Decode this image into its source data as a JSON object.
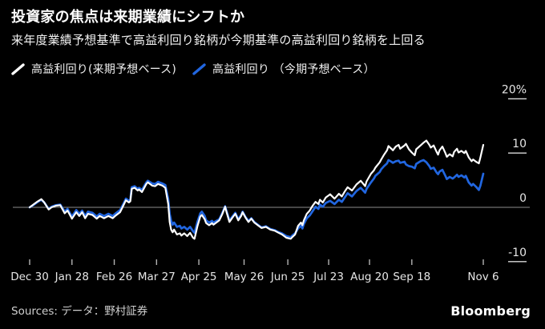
{
  "header": {
    "title": "投資家の焦点は来期業績にシフトか",
    "subtitle": "来年度業績予想基準で高益利回り銘柄が今期基準の高益利回り銘柄を上回る"
  },
  "legend": [
    {
      "label": "高益利回り(来期予想ベース)",
      "color": "#ffffff"
    },
    {
      "label": "高益利回り （今期予想ベース）",
      "color": "#2166e0"
    }
  ],
  "footer": {
    "sources_label": "Sources:",
    "sources_text": "データ：野村証券",
    "brand": "Bloomberg"
  },
  "theme": {
    "background": "#000000",
    "zero_line": "#8c8c8c",
    "y_tick": "#d9d9d9",
    "x_tick": "#b3b3b3",
    "axis_text": "#e6e6e6"
  },
  "chart_data": {
    "type": "line",
    "title": "投資家の焦点は来期業績にシフトか",
    "x_unit": "days since Dec 30",
    "xlim": [
      0,
      311
    ],
    "ylim": [
      -11,
      22
    ],
    "grid": "zero line only",
    "legend_position": "top",
    "y_ticks": [
      {
        "label": "20%",
        "value": 20
      },
      {
        "label": "10",
        "value": 10
      },
      {
        "label": "0",
        "value": 0
      },
      {
        "label": "-10",
        "value": -10
      }
    ],
    "x_ticks": [
      {
        "label": "Dec 30",
        "day": 0
      },
      {
        "label": "Jan 28",
        "day": 29
      },
      {
        "label": "Feb 26",
        "day": 58
      },
      {
        "label": "Mar 27",
        "day": 87
      },
      {
        "label": "Apr 25",
        "day": 116
      },
      {
        "label": "May 26",
        "day": 147
      },
      {
        "label": "Jun 25",
        "day": 177
      },
      {
        "label": "Jul 23",
        "day": 205
      },
      {
        "label": "Aug 20",
        "day": 233
      },
      {
        "label": "Sep 18",
        "day": 262
      },
      {
        "label": "Nov 6",
        "day": 311
      }
    ],
    "days": [
      0,
      3,
      5,
      8,
      10,
      13,
      15,
      18,
      21,
      24,
      26,
      29,
      32,
      34,
      36,
      38,
      40,
      43,
      46,
      48,
      51,
      54,
      57,
      59,
      62,
      64,
      66,
      68,
      69,
      70,
      72,
      74,
      75,
      77,
      80,
      81,
      84,
      86,
      88,
      91,
      93,
      95,
      96,
      97,
      98,
      99,
      101,
      103,
      104,
      106,
      108,
      110,
      112,
      113,
      115,
      117,
      118,
      120,
      121,
      123,
      125,
      126,
      128,
      130,
      132,
      134,
      135,
      137,
      139,
      141,
      143,
      145,
      146,
      148,
      150,
      152,
      154,
      157,
      159,
      162,
      165,
      168,
      170,
      173,
      176,
      179,
      180,
      182,
      184,
      186,
      187,
      188,
      190,
      192,
      194,
      196,
      198,
      199,
      201,
      203,
      206,
      209,
      212,
      214,
      216,
      218,
      220,
      221,
      224,
      227,
      230,
      231,
      234,
      236,
      237,
      240,
      241,
      243,
      245,
      246,
      248,
      249,
      251,
      253,
      254,
      257,
      258,
      260,
      262,
      264,
      265,
      268,
      270,
      272,
      274,
      275,
      277,
      279,
      280,
      281,
      283,
      285,
      286,
      288,
      290,
      291,
      293,
      294,
      296,
      298,
      299,
      301,
      303,
      304,
      306,
      308,
      309,
      311
    ],
    "series": [
      {
        "name": "高益利回り(来期予想ベース)",
        "color": "#ffffff",
        "width": 2.2,
        "values": [
          0.0,
          0.6,
          1.0,
          1.5,
          0.9,
          -0.4,
          0.0,
          0.3,
          0.4,
          -1.1,
          -0.6,
          -2.1,
          -0.9,
          -1.6,
          -0.9,
          -2.0,
          -1.2,
          -1.4,
          -2.1,
          -1.6,
          -2.0,
          -1.6,
          -2.0,
          -1.5,
          -0.9,
          0.2,
          1.3,
          0.9,
          1.1,
          3.4,
          3.6,
          3.1,
          3.3,
          2.8,
          4.3,
          4.6,
          4.0,
          3.9,
          4.3,
          4.0,
          3.6,
          0.6,
          -2.7,
          -4.1,
          -4.6,
          -4.1,
          -5.0,
          -4.8,
          -5.2,
          -4.8,
          -5.3,
          -4.7,
          -5.6,
          -5.8,
          -3.5,
          -1.7,
          -1.4,
          -2.2,
          -2.9,
          -3.3,
          -2.9,
          -3.2,
          -2.8,
          -2.4,
          -1.3,
          0.1,
          -0.9,
          -2.7,
          -1.9,
          -1.2,
          -2.4,
          -1.6,
          -0.9,
          -1.9,
          -2.7,
          -2.1,
          -2.8,
          -3.4,
          -3.8,
          -3.6,
          -4.1,
          -4.3,
          -4.6,
          -5.0,
          -5.6,
          -5.8,
          -5.5,
          -5.0,
          -3.4,
          -2.8,
          -3.3,
          -2.4,
          -1.2,
          -0.6,
          0.3,
          1.0,
          0.6,
          1.4,
          0.9,
          1.8,
          2.4,
          1.6,
          2.5,
          2.0,
          2.9,
          3.7,
          3.3,
          3.1,
          4.2,
          4.9,
          3.9,
          4.8,
          6.2,
          6.8,
          7.3,
          8.3,
          8.8,
          9.7,
          10.5,
          11.3,
          10.8,
          10.5,
          11.2,
          11.5,
          10.8,
          11.4,
          11.7,
          10.7,
          10.1,
          9.6,
          10.7,
          11.4,
          11.9,
          12.3,
          11.5,
          11.0,
          11.4,
          10.2,
          9.7,
          10.5,
          11.2,
          10.0,
          9.3,
          9.8,
          9.4,
          10.2,
          10.8,
          10.1,
          10.4,
          10.0,
          10.4,
          9.2,
          8.5,
          8.8,
          8.4,
          8.1,
          9.2,
          11.5
        ]
      },
      {
        "name": "高益利回り（今期予想ベース）",
        "color": "#2166e0",
        "width": 2.7,
        "values": [
          0.0,
          0.5,
          0.9,
          1.4,
          0.9,
          -0.3,
          0.1,
          0.4,
          0.5,
          -0.8,
          -0.3,
          -1.7,
          -0.5,
          -1.2,
          -0.6,
          -1.6,
          -0.8,
          -1.0,
          -1.7,
          -1.2,
          -1.6,
          -1.2,
          -1.6,
          -1.1,
          -0.5,
          0.5,
          1.6,
          1.2,
          1.4,
          3.7,
          3.9,
          3.4,
          3.6,
          3.2,
          4.6,
          4.9,
          4.4,
          4.3,
          4.7,
          4.4,
          4.1,
          1.5,
          -1.2,
          -2.5,
          -3.2,
          -2.8,
          -3.6,
          -3.4,
          -3.9,
          -3.6,
          -4.1,
          -3.6,
          -4.4,
          -4.7,
          -2.7,
          -1.1,
          -0.8,
          -1.6,
          -2.4,
          -2.8,
          -2.5,
          -2.8,
          -2.5,
          -2.2,
          -1.1,
          0.2,
          -0.7,
          -2.4,
          -1.7,
          -1.0,
          -2.2,
          -1.4,
          -0.8,
          -1.8,
          -2.5,
          -2.0,
          -2.7,
          -3.3,
          -3.7,
          -3.5,
          -4.0,
          -4.2,
          -4.5,
          -4.8,
          -5.3,
          -5.5,
          -5.2,
          -4.8,
          -3.9,
          -3.4,
          -3.9,
          -3.1,
          -2.0,
          -1.5,
          -0.7,
          0.1,
          -0.3,
          0.5,
          0.1,
          0.8,
          1.2,
          0.6,
          1.4,
          1.0,
          1.8,
          2.6,
          2.2,
          2.0,
          3.0,
          3.6,
          2.7,
          3.4,
          4.6,
          5.3,
          5.8,
          6.5,
          7.0,
          7.6,
          8.1,
          8.7,
          8.4,
          8.2,
          8.5,
          8.6,
          8.2,
          8.4,
          7.9,
          7.6,
          7.5,
          7.2,
          8.0,
          8.5,
          8.7,
          8.3,
          7.6,
          7.1,
          7.3,
          6.4,
          6.1,
          6.6,
          6.9,
          5.8,
          5.2,
          5.6,
          5.3,
          5.5,
          6.0,
          5.6,
          5.9,
          5.5,
          5.8,
          4.6,
          4.0,
          4.3,
          3.8,
          3.2,
          4.0,
          6.2
        ]
      }
    ]
  }
}
